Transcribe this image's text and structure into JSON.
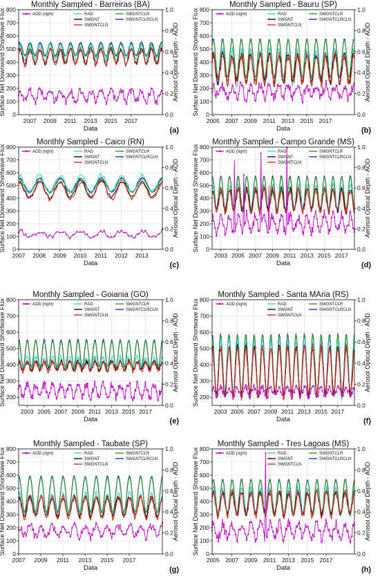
{
  "figure": {
    "colors": {
      "RAD": "#3fd0d0",
      "SWGNT": "#111111",
      "SWGNTCLN": "#e0281c",
      "SWGNTCLR": "#2a9a2a",
      "SWGNTCLRCLN": "#1f2fd0",
      "AOD": "#c000c8"
    }
  },
  "chart_data": [
    {
      "type": "line",
      "panel_label": "(a)",
      "title": "Monthly Sampled - Barreiras (BA)",
      "xlabel": "Data",
      "ylabel": "Surface Net Downward Shortwave Flux",
      "y2label": "Aerosol Optical Depth - AOD",
      "legend": [
        "AOD (right)",
        "RAD",
        "SWGNT",
        "SWGNTCLN",
        "SWGNTCLR",
        "SWGNTCLRCLN"
      ],
      "legend_loc": "top",
      "grid": true,
      "x_range": [
        2005.9,
        2020.1
      ],
      "xticks": [
        2007,
        2009,
        2011,
        2013,
        2015,
        2017
      ],
      "ylim": [
        0,
        800
      ],
      "yticks": [
        0,
        100,
        200,
        300,
        400,
        500,
        600,
        700,
        800
      ],
      "y2lim": [
        0,
        1.0
      ],
      "y2ticks": [
        0.0,
        0.2,
        0.4,
        0.6,
        0.8,
        1.0
      ],
      "series": [
        {
          "name": "SWGNTCLRCLN",
          "mean": 500,
          "amp": 50,
          "noise": 6
        },
        {
          "name": "SWGNTCLR",
          "mean": 492,
          "amp": 48,
          "noise": 6
        },
        {
          "name": "RAD",
          "mean": 470,
          "amp": 55,
          "noise": 22
        },
        {
          "name": "SWGNT",
          "mean": 445,
          "amp": 55,
          "noise": 14
        },
        {
          "name": "SWGNTCLN",
          "mean": 440,
          "amp": 58,
          "noise": 22
        },
        {
          "name": "AOD (right)",
          "mean": 0.18,
          "amp": 0.05,
          "noise": 0.035,
          "axis": "right"
        }
      ]
    },
    {
      "type": "line",
      "panel_label": "(b)",
      "title": "Monthly Sampled - Bauru (SP)",
      "xlabel": "Data",
      "ylabel": "Surface Net Downward Shortwave Flux",
      "y2label": "Aerosol Optical Depth - AOD",
      "legend": [
        "AOD (right)",
        "RAD",
        "SWGNT",
        "SWGNTCLN",
        "SWGNTCLR",
        "SWGNTCLRCLN"
      ],
      "legend_loc": "top",
      "grid": true,
      "x_range": [
        2004.9,
        2020.1
      ],
      "xticks": [
        2005,
        2007,
        2009,
        2011,
        2013,
        2015,
        2017
      ],
      "ylim": [
        0,
        800
      ],
      "yticks": [
        0,
        100,
        200,
        300,
        400,
        500,
        600,
        700,
        800
      ],
      "y2lim": [
        0,
        1.0
      ],
      "y2ticks": [
        0.0,
        0.2,
        0.4,
        0.6,
        0.8,
        1.0
      ],
      "series": [
        {
          "name": "SWGNTCLRCLN",
          "mean": 430,
          "amp": 150,
          "noise": 4
        },
        {
          "name": "SWGNTCLR",
          "mean": 425,
          "amp": 148,
          "noise": 4
        },
        {
          "name": "RAD",
          "mean": 360,
          "amp": 130,
          "noise": 28
        },
        {
          "name": "SWGNT",
          "mean": 355,
          "amp": 105,
          "noise": 28
        },
        {
          "name": "SWGNTCLN",
          "mean": 345,
          "amp": 110,
          "noise": 35
        },
        {
          "name": "AOD (right)",
          "mean": 0.22,
          "amp": 0.06,
          "noise": 0.05,
          "axis": "right"
        }
      ]
    },
    {
      "type": "line",
      "panel_label": "(c)",
      "title": "Monthly Sampled - Caico (RN)",
      "xlabel": "Data",
      "ylabel": "Surface Net Downward Shortwave Flux",
      "y2label": "Aerosol Optical Depth - AOD",
      "legend": [
        "AOD (right)",
        "RAD",
        "SWGNT",
        "SWGNTCLN",
        "SWGNTCLR",
        "SWGNTCLRCLN"
      ],
      "legend_loc": "top",
      "grid": true,
      "x_range": [
        2007.0,
        2014.0
      ],
      "xticks": [
        2007,
        2008,
        2009,
        2010,
        2011,
        2012,
        2013
      ],
      "ylim": [
        0,
        800
      ],
      "yticks": [
        0,
        100,
        200,
        300,
        400,
        500,
        600,
        700,
        800
      ],
      "y2lim": [
        0,
        1.0
      ],
      "y2ticks": [
        0.0,
        0.2,
        0.4,
        0.6,
        0.8,
        1.0
      ],
      "series": [
        {
          "name": "SWGNTCLRCLN",
          "mean": 505,
          "amp": 55,
          "noise": 4
        },
        {
          "name": "SWGNTCLR",
          "mean": 498,
          "amp": 55,
          "noise": 4
        },
        {
          "name": "RAD",
          "mean": 515,
          "amp": 65,
          "noise": 18
        },
        {
          "name": "SWGNT",
          "mean": 470,
          "amp": 65,
          "noise": 14
        },
        {
          "name": "SWGNTCLN",
          "mean": 462,
          "amp": 70,
          "noise": 16
        },
        {
          "name": "AOD (right)",
          "mean": 0.15,
          "amp": 0.03,
          "noise": 0.02,
          "axis": "right"
        }
      ]
    },
    {
      "type": "line",
      "panel_label": "(d)",
      "title": "Monthly Sampled - Campo Grande (MS)",
      "xlabel": "Data",
      "ylabel": "Surface Net Downward Shortwave Flux",
      "y2label": "Aerosol Optical Depth - AOD",
      "legend": [
        "AOD (right)",
        "RAD",
        "SWGNT",
        "SWGNTCLN",
        "SWGNTCLR",
        "SWGNTCLRCLN"
      ],
      "legend_loc": "top",
      "grid": true,
      "x_range": [
        2002.0,
        2018.5
      ],
      "xticks": [
        2003,
        2005,
        2007,
        2009,
        2011,
        2013,
        2015,
        2017
      ],
      "ylim": [
        0,
        800
      ],
      "yticks": [
        0,
        100,
        200,
        300,
        400,
        500,
        600,
        700,
        800
      ],
      "y2lim": [
        0,
        1.0
      ],
      "y2ticks": [
        0.0,
        0.2,
        0.4,
        0.6,
        0.8,
        1.0
      ],
      "series": [
        {
          "name": "SWGNTCLRCLN",
          "mean": 445,
          "amp": 130,
          "noise": 4
        },
        {
          "name": "SWGNTCLR",
          "mean": 440,
          "amp": 128,
          "noise": 4
        },
        {
          "name": "RAD",
          "mean": 400,
          "amp": 95,
          "noise": 25
        },
        {
          "name": "SWGNT",
          "mean": 385,
          "amp": 85,
          "noise": 25
        },
        {
          "name": "SWGNTCLN",
          "mean": 380,
          "amp": 90,
          "noise": 30
        },
        {
          "name": "AOD (right)",
          "mean": 0.25,
          "amp": 0.08,
          "noise": 0.05,
          "axis": "right",
          "peaks": [
            [
              2004.6,
              0.87
            ],
            [
              2005.7,
              0.73
            ],
            [
              2007.7,
              0.94
            ],
            [
              2008.6,
              0.62
            ],
            [
              2010.7,
              0.99
            ]
          ]
        }
      ]
    },
    {
      "type": "line",
      "panel_label": "(e)",
      "title": "Monthly Sampled - Goiania (GO)",
      "xlabel": "Data",
      "ylabel": "Surface Net Downward Shortwave Flux",
      "y2label": "Aerosol Optical Depth - AOD",
      "legend": [
        "AOD (right)",
        "RAD",
        "SWGNT",
        "SWGNTCLN",
        "SWGNTCLR",
        "SWGNTCLRCLN"
      ],
      "legend_loc": "top",
      "grid": true,
      "x_range": [
        2002.0,
        2019.0
      ],
      "xticks": [
        2003,
        2005,
        2007,
        2009,
        2011,
        2013,
        2015,
        2017
      ],
      "ylim": [
        150,
        800
      ],
      "yticks": [
        200,
        300,
        400,
        500,
        600,
        700,
        800
      ],
      "y2lim": [
        0,
        1.0
      ],
      "y2ticks": [
        0.0,
        0.2,
        0.4,
        0.6,
        0.8,
        1.0
      ],
      "series": [
        {
          "name": "SWGNTCLRCLN",
          "mean": 470,
          "amp": 85,
          "noise": 4
        },
        {
          "name": "SWGNTCLR",
          "mean": 465,
          "amp": 83,
          "noise": 4
        },
        {
          "name": "RAD",
          "mean": 410,
          "amp": 35,
          "noise": 18
        },
        {
          "name": "SWGNT",
          "mean": 395,
          "amp": 25,
          "noise": 14
        },
        {
          "name": "SWGNTCLN",
          "mean": 390,
          "amp": 28,
          "noise": 16
        },
        {
          "name": "AOD (right)",
          "mean": 0.14,
          "amp": 0.06,
          "noise": 0.04,
          "axis": "right"
        }
      ]
    },
    {
      "type": "line",
      "panel_label": "(f)",
      "title": "Monthly Sampled - Santa MAria (RS)",
      "xlabel": "Data",
      "ylabel": "Surface Net Downward Shortwave Flux",
      "y2label": "Aerosol Optical Depth - AOD",
      "legend": [
        "AOD (right)",
        "RAD",
        "SWGNT",
        "SWGNTCLN",
        "SWGNTCLR",
        "SWGNTCLRCLN"
      ],
      "legend_loc": "top",
      "grid": true,
      "x_range": [
        2002.0,
        2019.0
      ],
      "xticks": [
        2003,
        2005,
        2007,
        2009,
        2011,
        2013,
        2015,
        2017
      ],
      "ylim": [
        150,
        800
      ],
      "yticks": [
        200,
        300,
        400,
        500,
        600,
        700,
        800
      ],
      "y2lim": [
        0,
        1.0
      ],
      "y2ticks": [
        0.0,
        0.2,
        0.4,
        0.6,
        0.8,
        1.0
      ],
      "series": [
        {
          "name": "SWGNTCLRCLN",
          "mean": 405,
          "amp": 185,
          "noise": 4
        },
        {
          "name": "SWGNTCLR",
          "mean": 400,
          "amp": 183,
          "noise": 4
        },
        {
          "name": "RAD",
          "mean": 375,
          "amp": 175,
          "noise": 20
        },
        {
          "name": "SWGNT",
          "mean": 360,
          "amp": 150,
          "noise": 22
        },
        {
          "name": "SWGNTCLN",
          "mean": 355,
          "amp": 155,
          "noise": 26
        },
        {
          "name": "AOD (right)",
          "mean": 0.13,
          "amp": 0.04,
          "noise": 0.03,
          "axis": "right"
        }
      ]
    },
    {
      "type": "line",
      "panel_label": "(g)",
      "title": "Monthly Sampled - Taubate (SP)",
      "xlabel": "Data",
      "ylabel": "Surface Net Downward Shortwave Flux",
      "y2label": "Aerosol Optical Depth - AOD",
      "legend": [
        "AOD (right)",
        "RAD",
        "SWGNT",
        "SWGNTCLN",
        "SWGNTCLR",
        "SWGNTCLRCLN"
      ],
      "legend_loc": "top",
      "grid": true,
      "x_range": [
        2007.0,
        2020.0
      ],
      "xticks": [
        2007,
        2009,
        2011,
        2013,
        2015,
        2017
      ],
      "ylim": [
        0,
        800
      ],
      "yticks": [
        0,
        100,
        200,
        300,
        400,
        500,
        600,
        700,
        800
      ],
      "y2lim": [
        0,
        1.0
      ],
      "y2ticks": [
        0.0,
        0.2,
        0.4,
        0.6,
        0.8,
        1.0
      ],
      "series": [
        {
          "name": "SWGNTCLRCLN",
          "mean": 455,
          "amp": 140,
          "noise": 4
        },
        {
          "name": "SWGNTCLR",
          "mean": 450,
          "amp": 138,
          "noise": 4
        },
        {
          "name": "RAD",
          "mean": 375,
          "amp": 85,
          "noise": 22
        },
        {
          "name": "SWGNT",
          "mean": 360,
          "amp": 75,
          "noise": 20
        },
        {
          "name": "SWGNTCLN",
          "mean": 355,
          "amp": 80,
          "noise": 24
        },
        {
          "name": "AOD (right)",
          "mean": 0.22,
          "amp": 0.05,
          "noise": 0.04,
          "axis": "right"
        }
      ]
    },
    {
      "type": "line",
      "panel_label": "(h)",
      "title": "Monthly Sampled - Tres Lagoas (MS)",
      "xlabel": "Data",
      "ylabel": "Surface Net Downward Shortwave Flux",
      "y2label": "Aerosol Optical Depth - AOD",
      "legend": [
        "AOD (right)",
        "RAD",
        "SWGNT",
        "SWGNTCLN",
        "SWGNTCLR",
        "SWGNTCLRCLN"
      ],
      "legend_loc": "top",
      "grid": true,
      "x_range": [
        2004.9,
        2020.0
      ],
      "xticks": [
        2005,
        2007,
        2009,
        2011,
        2013,
        2015,
        2017
      ],
      "ylim": [
        0,
        800
      ],
      "yticks": [
        0,
        100,
        200,
        300,
        400,
        500,
        600,
        700,
        800
      ],
      "y2lim": [
        0,
        1.0
      ],
      "y2ticks": [
        0.0,
        0.2,
        0.4,
        0.6,
        0.8,
        1.0
      ],
      "series": [
        {
          "name": "SWGNTCLRCLN",
          "mean": 440,
          "amp": 130,
          "noise": 4
        },
        {
          "name": "SWGNTCLR",
          "mean": 436,
          "amp": 128,
          "noise": 4
        },
        {
          "name": "RAD",
          "mean": 400,
          "amp": 100,
          "noise": 25
        },
        {
          "name": "SWGNT",
          "mean": 385,
          "amp": 85,
          "noise": 22
        },
        {
          "name": "SWGNTCLN",
          "mean": 380,
          "amp": 90,
          "noise": 26
        },
        {
          "name": "AOD (right)",
          "mean": 0.22,
          "amp": 0.07,
          "noise": 0.05,
          "axis": "right",
          "peaks": [
            [
              2010.6,
              0.96
            ]
          ]
        }
      ]
    }
  ]
}
